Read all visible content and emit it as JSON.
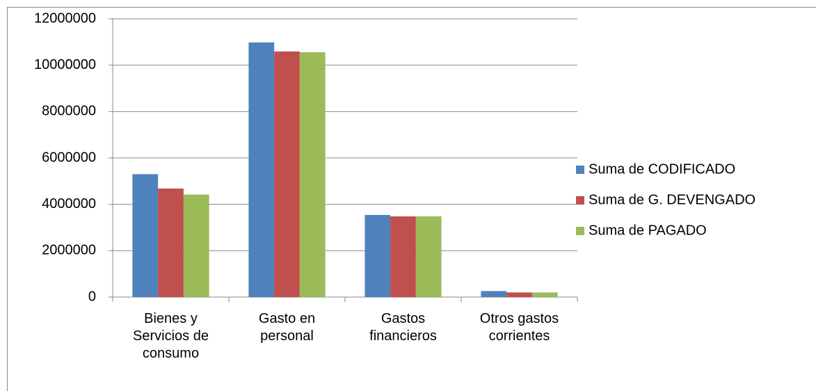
{
  "chart_data": {
    "type": "bar",
    "categories": [
      "Bienes y Servicios de consumo",
      "Gasto en personal",
      "Gastos financieros",
      "Otros gastos corrientes"
    ],
    "series": [
      {
        "name": "Suma de CODIFICADO",
        "color": "#4f81bd",
        "values": [
          5300000,
          10980000,
          3540000,
          260000
        ]
      },
      {
        "name": "Suma de G. DEVENGADO",
        "color": "#c0504d",
        "values": [
          4680000,
          10590000,
          3480000,
          200000
        ]
      },
      {
        "name": "Suma de PAGADO",
        "color": "#9bbb59",
        "values": [
          4420000,
          10560000,
          3480000,
          200000
        ]
      }
    ],
    "ylim": [
      0,
      12000000
    ],
    "yticks": [
      0,
      2000000,
      4000000,
      6000000,
      8000000,
      10000000,
      12000000
    ],
    "grid": true,
    "legend": "right"
  }
}
